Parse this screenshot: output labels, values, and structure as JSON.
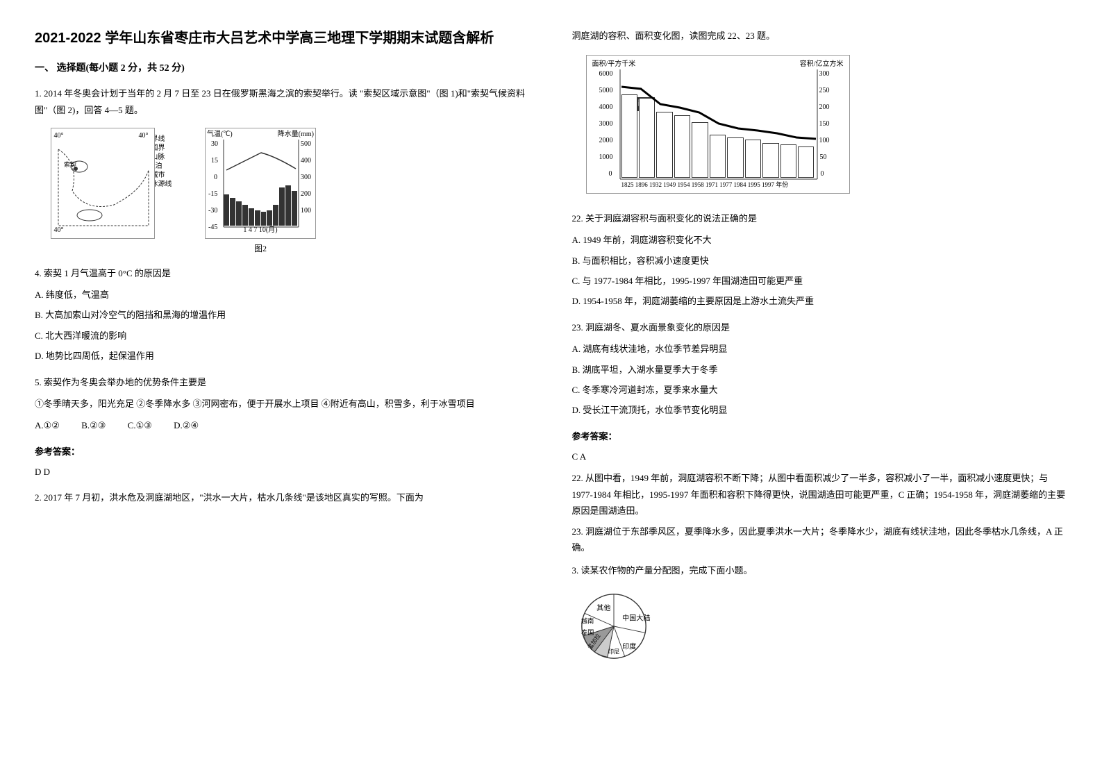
{
  "title": "2021-2022 学年山东省枣庄市大吕艺术中学高三地理下学期期末试题含解析",
  "section1": {
    "heading": "一、 选择题(每小题 2 分，共 52 分)"
  },
  "q1": {
    "intro": "1. 2014 年冬奥会计划于当年的 2 月 7 日至 23 日在俄罗斯黑海之滨的索契举行。读 \"索契区域示意图\"（图 1)和\"索契气候资料图\"（图 2)，回答 4—5 题。",
    "map_legend": {
      "border": "界线",
      "country": "国界",
      "mountain": "山脉",
      "lake": "湖泊",
      "city": "城市",
      "river": "冰源线"
    },
    "climate": {
      "temp_label": "气温(℃)",
      "precip_label": "降水量(mm)",
      "temp_ticks": [
        "30",
        "15",
        "0",
        "-15",
        "-30",
        "-45"
      ],
      "precip_ticks": [
        "500",
        "400",
        "300",
        "200",
        "100"
      ],
      "x_ticks": "1  4  7  10(月)",
      "bars": [
        45,
        40,
        35,
        30,
        25,
        22,
        20,
        22,
        30,
        55,
        58,
        50
      ]
    },
    "fig1_label": "图1",
    "fig2_label": "图2",
    "q4": {
      "stem": "4. 索契 1 月气温高于 0°C 的原因是",
      "a": "A. 纬度低，气温高",
      "b": "B. 大高加索山对冷空气的阻挡和黑海的增温作用",
      "c": "C. 北大西洋暖流的影响",
      "d": "D. 地势比四周低，起保温作用"
    },
    "q5": {
      "stem": "5. 索契作为冬奥会举办地的优势条件主要是",
      "options_text": "①冬季晴天多，阳光充足 ②冬季降水多 ③河网密布，便于开展水上项目 ④附近有高山，积雪多，利于冰雪项目",
      "a": "A.①②",
      "b": "B.②③",
      "c": "C.①③",
      "d": "D.②④"
    },
    "answer_label": "参考答案：",
    "answer": "D  D"
  },
  "q2": {
    "intro": "2. 2017 年 7 月初，洪水危及洞庭湖地区，\"洪水一大片，枯水几条线\"是该地区真实的写照。下面为",
    "intro2": "洞庭湖的容积、面积变化图，读图完成 22、23 题。",
    "chart": {
      "left_axis": "面积/平方千米",
      "right_axis": "容积/亿立方米",
      "left_ticks": [
        "6000",
        "5000",
        "4000",
        "3000",
        "2000",
        "1000",
        "0"
      ],
      "right_ticks": [
        "300",
        "250",
        "200",
        "150",
        "100",
        "50",
        "0"
      ],
      "area_label": "面积",
      "years": [
        "1825",
        "1896",
        "1932",
        "1949",
        "1954",
        "1958",
        "1971",
        "1977",
        "1984",
        "1995",
        "1997",
        "年份"
      ],
      "area_bars": [
        120,
        115,
        95,
        90,
        80,
        62,
        58,
        55,
        50,
        48,
        45
      ],
      "volume_curve": [
        15,
        18,
        40,
        45,
        52,
        68,
        75,
        78,
        82,
        88,
        90
      ]
    },
    "q22": {
      "stem": "22. 关于洞庭湖容积与面积变化的说法正确的是",
      "a": "A. 1949 年前，洞庭湖容积变化不大",
      "b": "B. 与面积相比，容积减小速度更快",
      "c": "C. 与 1977-1984 年相比，1995-1997 年围湖造田可能更严重",
      "d": "D. 1954-1958 年，洞庭湖萎缩的主要原因是上游水土流失严重"
    },
    "q23": {
      "stem": "23. 洞庭湖冬、夏水面景象变化的原因是",
      "a": "A. 湖底有线状洼地，水位季节差异明显",
      "b": "B. 湖底平坦，入湖水量夏季大于冬季",
      "c": "C. 冬季寒冷河道封冻，夏季来水量大",
      "d": "D. 受长江干流顶托，水位季节变化明显"
    },
    "answer_label": "参考答案：",
    "answer": "C  A",
    "exp22": "22. 从图中看，1949 年前，洞庭湖容积不断下降；从图中看面积减少了一半多，容积减小了一半，面积减小速度更快；与 1977-1984 年相比，1995-1997 年面积和容积下降得更快，说围湖造田可能更严重，C 正确；1954-1958 年，洞庭湖萎缩的主要原因是围湖造田。",
    "exp23": "23. 洞庭湖位于东部季风区，夏季降水多，因此夏季洪水一大片；冬季降水少，湖底有线状洼地，因此冬季枯水几条线，A 正确。"
  },
  "q3": {
    "intro": "3. 读某农作物的产量分配图，完成下面小题。",
    "pie": {
      "slices": [
        {
          "label": "其他",
          "color": "#ffffff"
        },
        {
          "label": "中国大陆",
          "color": "#ffffff"
        },
        {
          "label": "印度",
          "color": "#ffffff"
        },
        {
          "label": "印尼",
          "color": "#cccccc"
        },
        {
          "label": "孟加拉",
          "color": "#999999"
        },
        {
          "label": "泰国",
          "color": "#ffffff"
        },
        {
          "label": "越南",
          "color": "#ffffff"
        }
      ]
    }
  }
}
